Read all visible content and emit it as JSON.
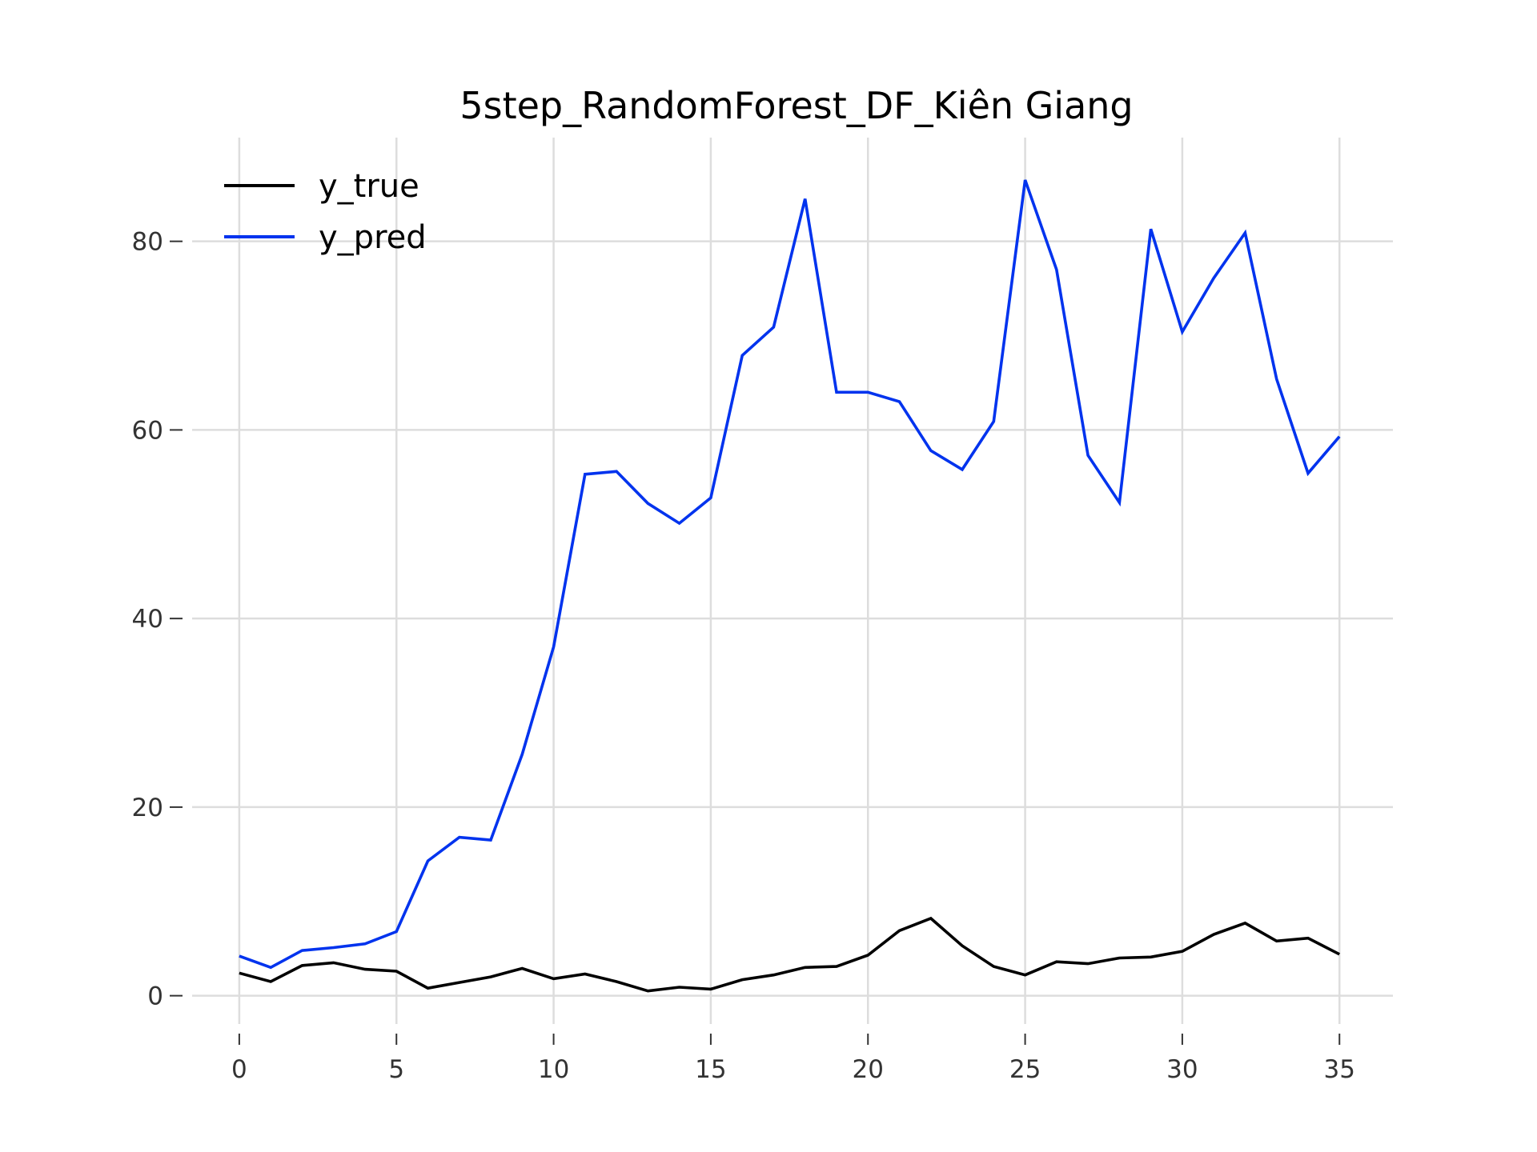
{
  "chart_data": {
    "type": "line",
    "title": "5step_RandomForest_DF_Kiên Giang",
    "xlabel": "",
    "ylabel": "",
    "xlim": [
      -1.5,
      36.7
    ],
    "ylim": [
      -3,
      91
    ],
    "xticks": [
      0,
      5,
      10,
      15,
      20,
      25,
      30,
      35
    ],
    "yticks": [
      0,
      20,
      40,
      60,
      80
    ],
    "grid": true,
    "legend_position": "top-left",
    "x": [
      0,
      1,
      2,
      3,
      4,
      5,
      6,
      7,
      8,
      9,
      10,
      11,
      12,
      13,
      14,
      15,
      16,
      17,
      18,
      19,
      20,
      21,
      22,
      23,
      24,
      25,
      26,
      27,
      28,
      29,
      30,
      31,
      32,
      33,
      34,
      35
    ],
    "series": [
      {
        "name": "y_true",
        "color": "#000000",
        "values": [
          2.4,
          1.5,
          3.2,
          3.5,
          2.8,
          2.6,
          0.8,
          1.4,
          2.0,
          2.9,
          1.8,
          2.3,
          1.5,
          0.5,
          0.9,
          0.7,
          1.7,
          2.2,
          3.0,
          3.1,
          4.3,
          6.9,
          8.2,
          5.3,
          3.1,
          2.2,
          3.6,
          3.4,
          4.0,
          4.1,
          4.7,
          6.5,
          7.7,
          5.8,
          6.1,
          4.4
        ]
      },
      {
        "name": "y_pred",
        "color": "#0033ee",
        "values": [
          4.2,
          3.0,
          4.8,
          5.1,
          5.5,
          6.8,
          14.3,
          16.8,
          16.5,
          25.6,
          37.0,
          55.3,
          55.6,
          52.2,
          50.1,
          52.8,
          67.9,
          70.9,
          84.5,
          64.0,
          64.0,
          63.0,
          57.8,
          55.8,
          60.9,
          86.5,
          77.0,
          57.3,
          52.3,
          81.3,
          70.4,
          76.1,
          80.9,
          65.4,
          55.4,
          59.3
        ]
      }
    ]
  }
}
